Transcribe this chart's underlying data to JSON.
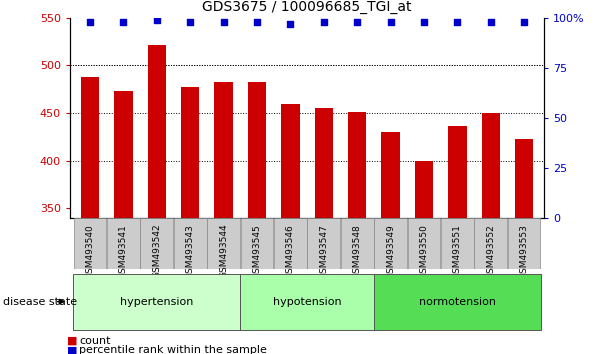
{
  "title": "GDS3675 / 100096685_TGI_at",
  "samples": [
    "GSM493540",
    "GSM493541",
    "GSM493542",
    "GSM493543",
    "GSM493544",
    "GSM493545",
    "GSM493546",
    "GSM493547",
    "GSM493548",
    "GSM493549",
    "GSM493550",
    "GSM493551",
    "GSM493552",
    "GSM493553"
  ],
  "counts": [
    488,
    473,
    521,
    477,
    482,
    482,
    459,
    455,
    451,
    430,
    400,
    436,
    450,
    423
  ],
  "percentiles": [
    98,
    98,
    99,
    98,
    98,
    98,
    97,
    98,
    98,
    98,
    98,
    98,
    98,
    98
  ],
  "bar_color": "#CC0000",
  "dot_color": "#0000CC",
  "ylim_left": [
    340,
    550
  ],
  "ylim_right": [
    0,
    100
  ],
  "yticks_left": [
    350,
    400,
    450,
    500,
    550
  ],
  "yticks_right": [
    0,
    25,
    50,
    75,
    100
  ],
  "yright_labels": [
    "0",
    "25",
    "50",
    "75",
    "100%"
  ],
  "grid_values": [
    400,
    450,
    500
  ],
  "groups": [
    {
      "label": "hypertension",
      "indices": [
        0,
        1,
        2,
        3,
        4
      ],
      "color": "#CCFFCC"
    },
    {
      "label": "hypotension",
      "indices": [
        5,
        6,
        7,
        8
      ],
      "color": "#AAFFAA"
    },
    {
      "label": "normotension",
      "indices": [
        9,
        10,
        11,
        12,
        13
      ],
      "color": "#55DD55"
    }
  ],
  "disease_label": "disease state",
  "legend_count_label": "count",
  "legend_pct_label": "percentile rank within the sample",
  "xtick_bg": "#CCCCCC",
  "plot_bg": "#FFFFFF"
}
